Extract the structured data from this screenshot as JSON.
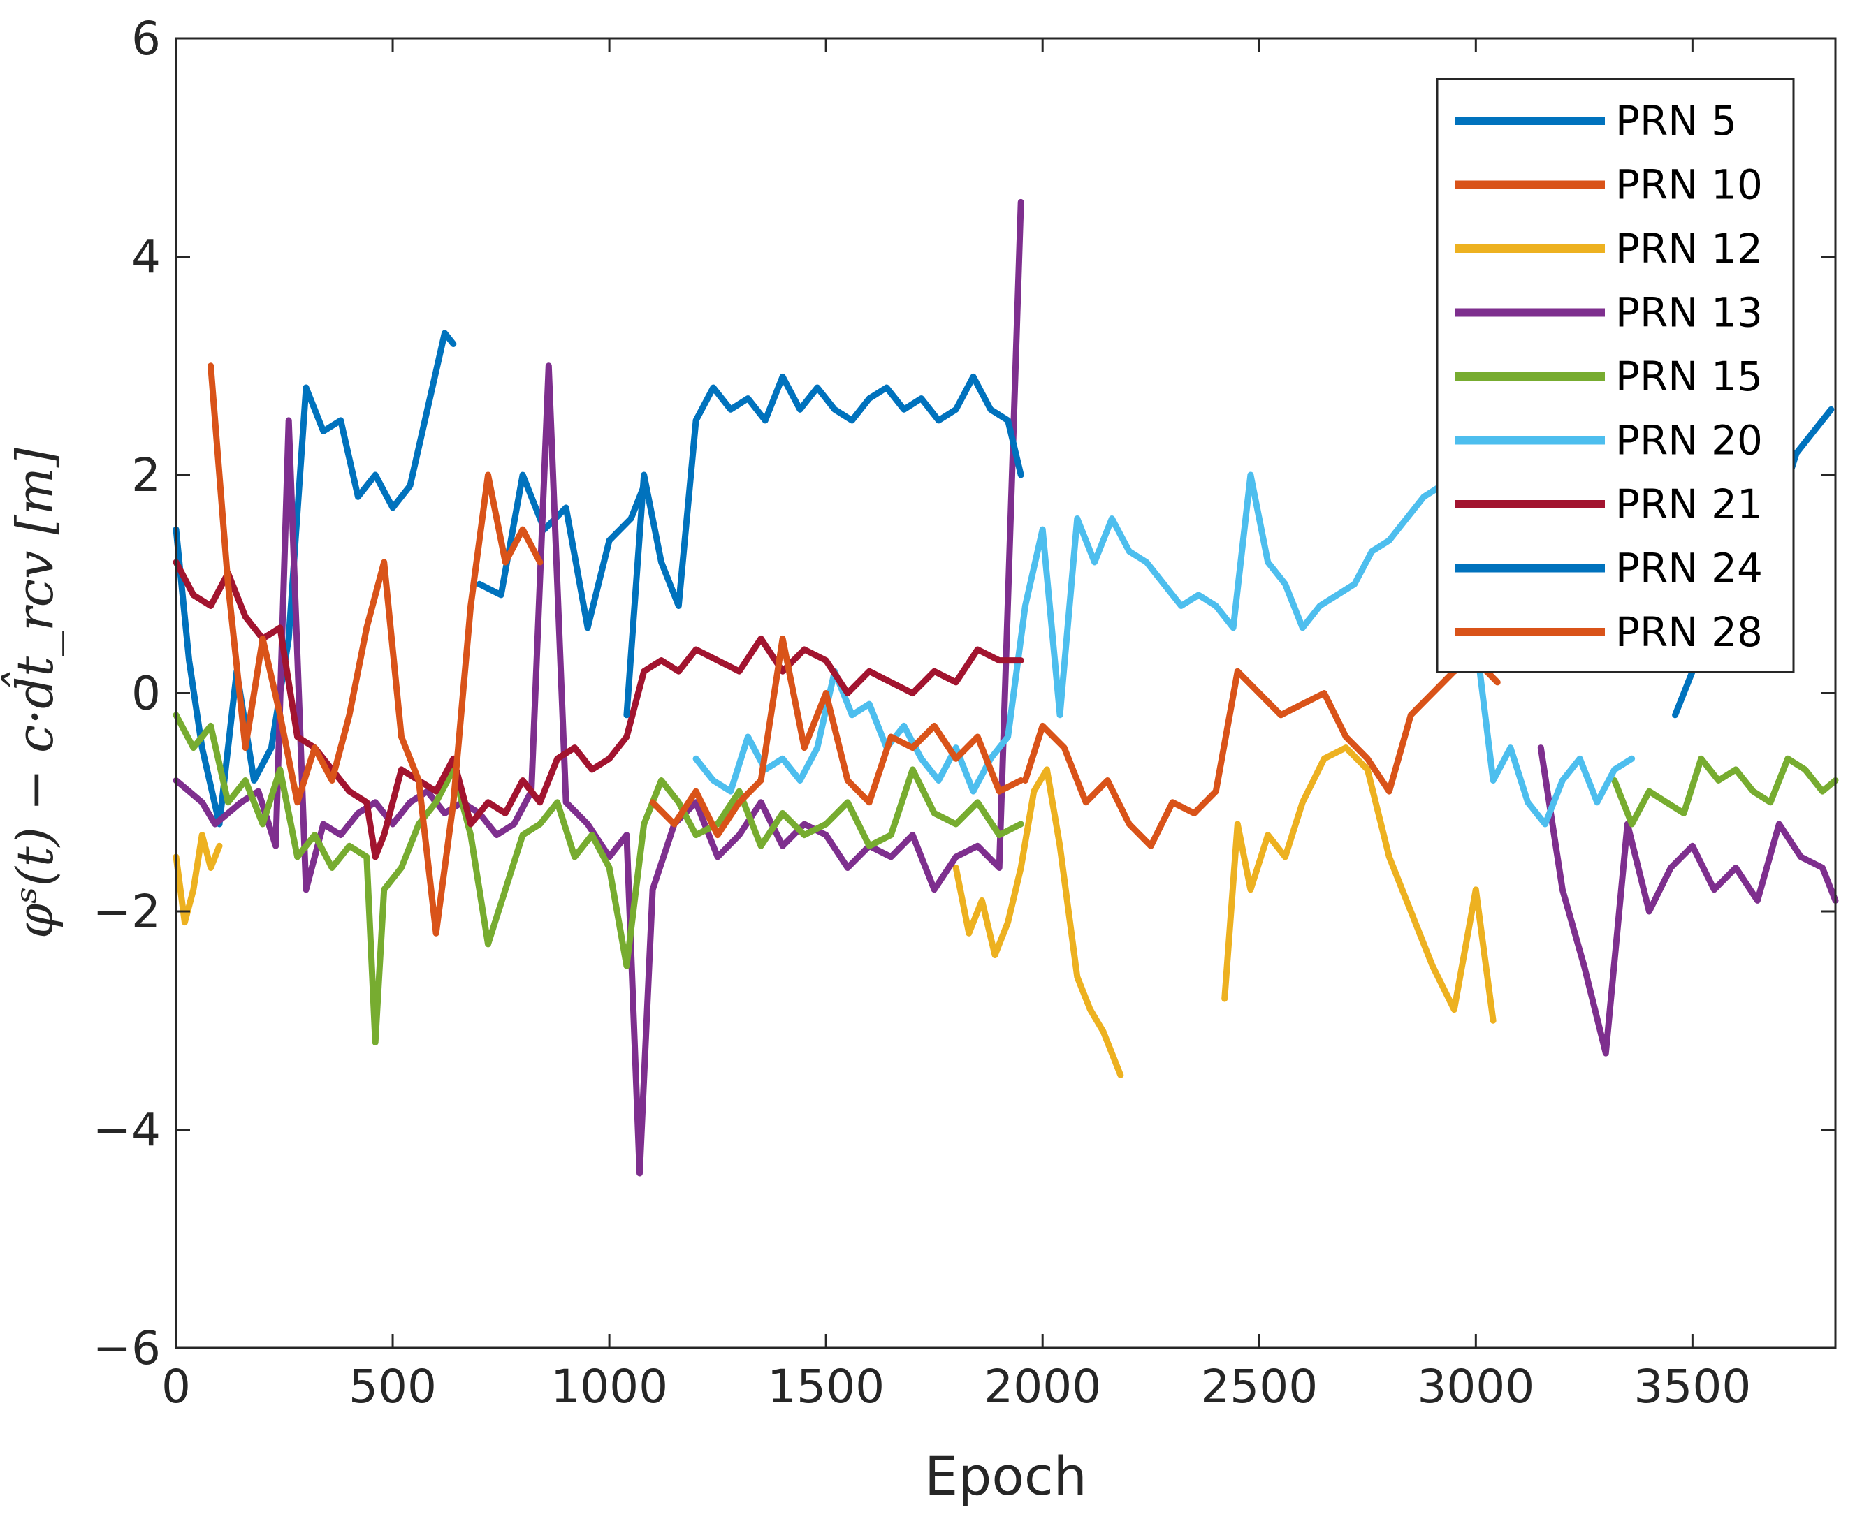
{
  "chart_data": {
    "type": "line",
    "title": "",
    "xlabel": "Epoch",
    "ylabel": "φˢ(t) − c·d̂t_rcv [m]",
    "xlim": [
      0,
      3830
    ],
    "ylim": [
      -6,
      6
    ],
    "x_ticks": [
      "0",
      "500",
      "1000",
      "1500",
      "2000",
      "2500",
      "3000",
      "3500"
    ],
    "y_ticks": [
      "−6",
      "−4",
      "−2",
      "0",
      "2",
      "4",
      "6"
    ],
    "grid": false,
    "legend_position": "top-right",
    "series": [
      {
        "name": "PRN 5",
        "color": "#0072BD",
        "segments": [
          {
            "x": [
              0,
              30,
              60,
              100,
              140,
              180,
              220,
              260,
              300,
              340,
              380,
              420,
              460,
              500,
              540,
              580,
              620,
              640
            ],
            "y": [
              1.5,
              0.3,
              -0.5,
              -1.2,
              0.2,
              -0.8,
              -0.5,
              0.5,
              2.8,
              2.4,
              2.5,
              1.8,
              2.0,
              1.7,
              1.9,
              2.6,
              3.3,
              3.2
            ]
          },
          {
            "x": [
              700,
              750,
              800,
              850,
              900,
              950,
              1000,
              1050,
              1080
            ],
            "y": [
              1.0,
              0.9,
              2.0,
              1.5,
              1.7,
              0.6,
              1.4,
              1.6,
              1.9
            ]
          }
        ]
      },
      {
        "name": "PRN 10",
        "color": "#D95319",
        "segments": [
          {
            "x": [
              1960,
              2000,
              2050,
              2100,
              2150,
              2200,
              2250,
              2300,
              2350,
              2400,
              2450,
              2500,
              2550,
              2600,
              2650,
              2700,
              2750,
              2800,
              2850,
              2900,
              2950,
              3000,
              3050
            ],
            "y": [
              -0.8,
              -0.3,
              -0.5,
              -1.0,
              -0.8,
              -1.2,
              -1.4,
              -1.0,
              -1.1,
              -0.9,
              0.2,
              0.0,
              -0.2,
              -0.1,
              0.0,
              -0.4,
              -0.6,
              -0.9,
              -0.2,
              0.0,
              0.2,
              0.3,
              0.1
            ]
          }
        ]
      },
      {
        "name": "PRN 12",
        "color": "#EDB120",
        "segments": [
          {
            "x": [
              0,
              20,
              40,
              60,
              80,
              100
            ],
            "y": [
              -1.5,
              -2.1,
              -1.8,
              -1.3,
              -1.6,
              -1.4
            ]
          },
          {
            "x": [
              1800,
              1830,
              1860,
              1890,
              1920,
              1950,
              1980,
              2010,
              2040,
              2080,
              2110,
              2140,
              2180
            ],
            "y": [
              -1.6,
              -2.2,
              -1.9,
              -2.4,
              -2.1,
              -1.6,
              -0.9,
              -0.7,
              -1.4,
              -2.6,
              -2.9,
              -3.1,
              -3.5
            ]
          },
          {
            "x": [
              2420,
              2450,
              2480,
              2520,
              2560,
              2600,
              2650,
              2700,
              2750,
              2800,
              2850,
              2900,
              2950,
              3000,
              3040
            ],
            "y": [
              -2.8,
              -1.2,
              -1.8,
              -1.3,
              -1.5,
              -1.0,
              -0.6,
              -0.5,
              -0.7,
              -1.5,
              -2.0,
              -2.5,
              -2.9,
              -1.8,
              -3.0
            ]
          }
        ]
      },
      {
        "name": "PRN 13",
        "color": "#7E2F8E",
        "segments": [
          {
            "x": [
              0,
              30,
              60,
              90,
              120,
              150,
              190,
              230,
              260,
              300,
              340,
              380,
              420,
              460,
              500,
              540,
              580,
              620,
              660,
              700,
              740,
              780,
              820,
              860,
              900,
              950,
              1000,
              1040,
              1070,
              1100,
              1150,
              1200,
              1250,
              1300,
              1350,
              1400,
              1450,
              1500,
              1550,
              1600,
              1650,
              1700,
              1750,
              1800,
              1850,
              1900,
              1950
            ],
            "y": [
              -0.8,
              -0.9,
              -1.0,
              -1.2,
              -1.1,
              -1.0,
              -0.9,
              -1.4,
              2.5,
              -1.8,
              -1.2,
              -1.3,
              -1.1,
              -1.0,
              -1.2,
              -1.0,
              -0.9,
              -1.1,
              -1.0,
              -1.1,
              -1.3,
              -1.2,
              -0.9,
              3.0,
              -1.0,
              -1.2,
              -1.5,
              -1.3,
              -4.4,
              -1.8,
              -1.2,
              -1.0,
              -1.5,
              -1.3,
              -1.0,
              -1.4,
              -1.2,
              -1.3,
              -1.6,
              -1.4,
              -1.5,
              -1.3,
              -1.8,
              -1.5,
              -1.4,
              -1.6,
              4.5
            ]
          },
          {
            "x": [
              3150,
              3200,
              3250,
              3300,
              3350,
              3400,
              3450,
              3500,
              3550,
              3600,
              3650,
              3700,
              3750,
              3800,
              3830
            ],
            "y": [
              -0.5,
              -1.8,
              -2.5,
              -3.3,
              -1.2,
              -2.0,
              -1.6,
              -1.4,
              -1.8,
              -1.6,
              -1.9,
              -1.2,
              -1.5,
              -1.6,
              -1.9
            ]
          }
        ]
      },
      {
        "name": "PRN 15",
        "color": "#77AC30",
        "segments": [
          {
            "x": [
              0,
              40,
              80,
              120,
              160,
              200,
              240,
              280,
              320,
              360,
              400,
              440,
              460,
              480,
              520,
              560,
              600,
              640,
              680,
              720,
              760,
              800,
              840,
              880,
              920,
              960,
              1000,
              1040,
              1080,
              1120,
              1160,
              1200,
              1250,
              1300,
              1350,
              1400,
              1450,
              1500,
              1550,
              1600,
              1650,
              1700,
              1750,
              1800,
              1850,
              1900,
              1950
            ],
            "y": [
              -0.2,
              -0.5,
              -0.3,
              -1.0,
              -0.8,
              -1.2,
              -0.7,
              -1.5,
              -1.3,
              -1.6,
              -1.4,
              -1.5,
              -3.2,
              -1.8,
              -1.6,
              -1.2,
              -1.0,
              -0.7,
              -1.3,
              -2.3,
              -1.8,
              -1.3,
              -1.2,
              -1.0,
              -1.5,
              -1.3,
              -1.6,
              -2.5,
              -1.2,
              -0.8,
              -1.0,
              -1.3,
              -1.2,
              -0.9,
              -1.4,
              -1.1,
              -1.3,
              -1.2,
              -1.0,
              -1.4,
              -1.3,
              -0.7,
              -1.1,
              -1.2,
              -1.0,
              -1.3,
              -1.2
            ]
          },
          {
            "x": [
              3320,
              3360,
              3400,
              3440,
              3480,
              3520,
              3560,
              3600,
              3640,
              3680,
              3720,
              3760,
              3800,
              3830
            ],
            "y": [
              -0.8,
              -1.2,
              -0.9,
              -1.0,
              -1.1,
              -0.6,
              -0.8,
              -0.7,
              -0.9,
              -1.0,
              -0.6,
              -0.7,
              -0.9,
              -0.8
            ]
          }
        ]
      },
      {
        "name": "PRN 20",
        "color": "#4DBEEE",
        "segments": [
          {
            "x": [
              1200,
              1240,
              1280,
              1320,
              1360,
              1400,
              1440,
              1480,
              1520,
              1560,
              1600,
              1640,
              1680,
              1720,
              1760,
              1800,
              1840,
              1880,
              1920,
              1960,
              2000,
              2040,
              2080,
              2120,
              2160,
              2200,
              2240,
              2280,
              2320,
              2360,
              2400,
              2440,
              2480,
              2520,
              2560,
              2600,
              2640,
              2680,
              2720,
              2760,
              2800,
              2840,
              2880,
              2920,
              2960,
              3000,
              3040,
              3080,
              3120,
              3160,
              3200,
              3240,
              3280,
              3320,
              3360
            ],
            "y": [
              -0.6,
              -0.8,
              -0.9,
              -0.4,
              -0.7,
              -0.6,
              -0.8,
              -0.5,
              0.2,
              -0.2,
              -0.1,
              -0.5,
              -0.3,
              -0.6,
              -0.8,
              -0.5,
              -0.9,
              -0.6,
              -0.4,
              0.8,
              1.5,
              -0.2,
              1.6,
              1.2,
              1.6,
              1.3,
              1.2,
              1.0,
              0.8,
              0.9,
              0.8,
              0.6,
              2.0,
              1.2,
              1.0,
              0.6,
              0.8,
              0.9,
              1.0,
              1.3,
              1.4,
              1.6,
              1.8,
              1.9,
              2.1,
              0.5,
              -0.8,
              -0.5,
              -1.0,
              -1.2,
              -0.8,
              -0.6,
              -1.0,
              -0.7,
              -0.6
            ]
          }
        ]
      },
      {
        "name": "PRN 21",
        "color": "#A2142F",
        "segments": [
          {
            "x": [
              0,
              40,
              80,
              120,
              160,
              200,
              240,
              280,
              320,
              360,
              400,
              440,
              460,
              480,
              520,
              560,
              600,
              640,
              680,
              720,
              760,
              800,
              840,
              880,
              920,
              960,
              1000,
              1040,
              1080,
              1120,
              1160,
              1200,
              1250,
              1300,
              1350,
              1400,
              1450,
              1500,
              1550,
              1600,
              1650,
              1700,
              1750,
              1800,
              1850,
              1900,
              1950
            ],
            "y": [
              1.2,
              0.9,
              0.8,
              1.1,
              0.7,
              0.5,
              0.6,
              -0.4,
              -0.5,
              -0.7,
              -0.9,
              -1.0,
              -1.5,
              -1.3,
              -0.7,
              -0.8,
              -0.9,
              -0.6,
              -1.2,
              -1.0,
              -1.1,
              -0.8,
              -1.0,
              -0.6,
              -0.5,
              -0.7,
              -0.6,
              -0.4,
              0.2,
              0.3,
              0.2,
              0.4,
              0.3,
              0.2,
              0.5,
              0.2,
              0.4,
              0.3,
              0.0,
              0.2,
              0.1,
              0.0,
              0.2,
              0.1,
              0.4,
              0.3,
              0.3
            ]
          }
        ]
      },
      {
        "name": "PRN 24",
        "color": "#0072BD",
        "segments": [
          {
            "x": [
              1040,
              1080,
              1120,
              1160,
              1200,
              1240,
              1280,
              1320,
              1360,
              1400,
              1440,
              1480,
              1520,
              1560,
              1600,
              1640,
              1680,
              1720,
              1760,
              1800,
              1840,
              1880,
              1920,
              1950
            ],
            "y": [
              -0.2,
              2.0,
              1.2,
              0.8,
              2.5,
              2.8,
              2.6,
              2.7,
              2.5,
              2.9,
              2.6,
              2.8,
              2.6,
              2.5,
              2.7,
              2.8,
              2.6,
              2.7,
              2.5,
              2.6,
              2.9,
              2.6,
              2.5,
              2.0
            ]
          },
          {
            "x": [
              3460,
              3500,
              3540,
              3580,
              3620,
              3660,
              3700,
              3740,
              3780,
              3820
            ],
            "y": [
              -0.2,
              0.2,
              0.8,
              1.4,
              1.8,
              2.0,
              1.7,
              2.2,
              2.4,
              2.6
            ]
          }
        ]
      },
      {
        "name": "PRN 28",
        "color": "#D95319",
        "segments": [
          {
            "x": [
              80,
              120,
              160,
              200,
              240,
              280,
              320,
              360,
              400,
              440,
              480,
              520,
              560,
              600,
              640,
              680,
              720,
              760,
              800,
              840
            ],
            "y": [
              3.0,
              1.0,
              -0.5,
              0.5,
              -0.2,
              -1.0,
              -0.5,
              -0.8,
              -0.2,
              0.6,
              1.2,
              -0.4,
              -0.8,
              -2.2,
              -1.0,
              0.8,
              2.0,
              1.2,
              1.5,
              1.2
            ]
          },
          {
            "x": [
              1100,
              1150,
              1200,
              1250,
              1300,
              1350,
              1400,
              1450,
              1500,
              1550,
              1600,
              1650,
              1700,
              1750,
              1800,
              1850,
              1900,
              1950
            ],
            "y": [
              -1.0,
              -1.2,
              -0.9,
              -1.3,
              -1.0,
              -0.8,
              0.5,
              -0.5,
              0.0,
              -0.8,
              -1.0,
              -0.4,
              -0.5,
              -0.3,
              -0.6,
              -0.4,
              -0.9,
              -0.8
            ]
          }
        ]
      }
    ]
  }
}
